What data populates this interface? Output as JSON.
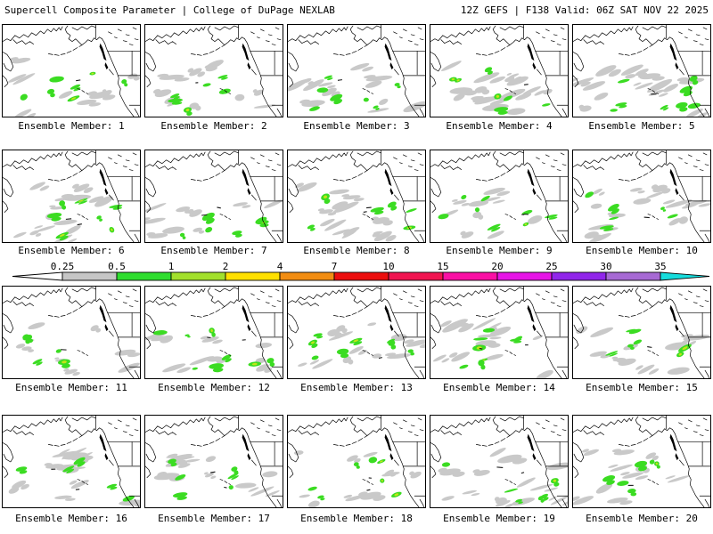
{
  "header": {
    "title_left": "Supercell Composite Parameter | College of DuPage NEXLAB",
    "title_right": "12Z GEFS | F138 Valid: 06Z SAT NOV 22 2025"
  },
  "colorbar": {
    "ticks": [
      "0.25",
      "0.5",
      "1",
      "2",
      "4",
      "7",
      "10",
      "15",
      "20",
      "25",
      "30",
      "35"
    ],
    "segment_colors": [
      "#c6c6c6",
      "#2fdd2f",
      "#a2e02c",
      "#ffe000",
      "#f28d12",
      "#ec0e0e",
      "#f01450",
      "#fa10a4",
      "#e614e6",
      "#9126ea",
      "#a76ad4"
    ],
    "left_arrow_color": "#ffffff",
    "right_arrow_color": "#16dcdc",
    "outline_color": "#000000"
  },
  "map_colors": {
    "coastline": "#000000",
    "ocean": "#ffffff",
    "scp_light_gray": "#c9c9c9",
    "scp_green": "#3bdc22",
    "scp_core_yellowgreen": "#c2e418"
  },
  "members": [
    {
      "label": "Ensemble Member: 1"
    },
    {
      "label": "Ensemble Member: 2"
    },
    {
      "label": "Ensemble Member: 3"
    },
    {
      "label": "Ensemble Member: 4"
    },
    {
      "label": "Ensemble Member: 5"
    },
    {
      "label": "Ensemble Member: 6"
    },
    {
      "label": "Ensemble Member: 7"
    },
    {
      "label": "Ensemble Member: 8"
    },
    {
      "label": "Ensemble Member: 9"
    },
    {
      "label": "Ensemble Member: 10"
    },
    {
      "label": "Ensemble Member: 11"
    },
    {
      "label": "Ensemble Member: 12"
    },
    {
      "label": "Ensemble Member: 13"
    },
    {
      "label": "Ensemble Member: 14"
    },
    {
      "label": "Ensemble Member: 15"
    },
    {
      "label": "Ensemble Member: 16"
    },
    {
      "label": "Ensemble Member: 17"
    },
    {
      "label": "Ensemble Member: 18"
    },
    {
      "label": "Ensemble Member: 19"
    },
    {
      "label": "Ensemble Member: 20"
    }
  ]
}
